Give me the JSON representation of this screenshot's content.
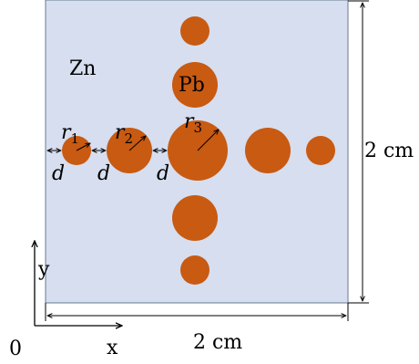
{
  "colors": {
    "plate_fill": "#d6deef",
    "plate_stroke": "#6b7a90",
    "particle": "#c85a12",
    "line": "#000000"
  },
  "labels": {
    "matrix": "Zn",
    "particle": "Pb",
    "r1": "r",
    "r1_sub": "1",
    "r2": "r",
    "r2_sub": "2",
    "r3": "r",
    "r3_sub": "3",
    "gap": "d",
    "height": "2 cm",
    "width": "2 cm",
    "origin": "0",
    "x_axis": "x",
    "y_axis": "y"
  }
}
